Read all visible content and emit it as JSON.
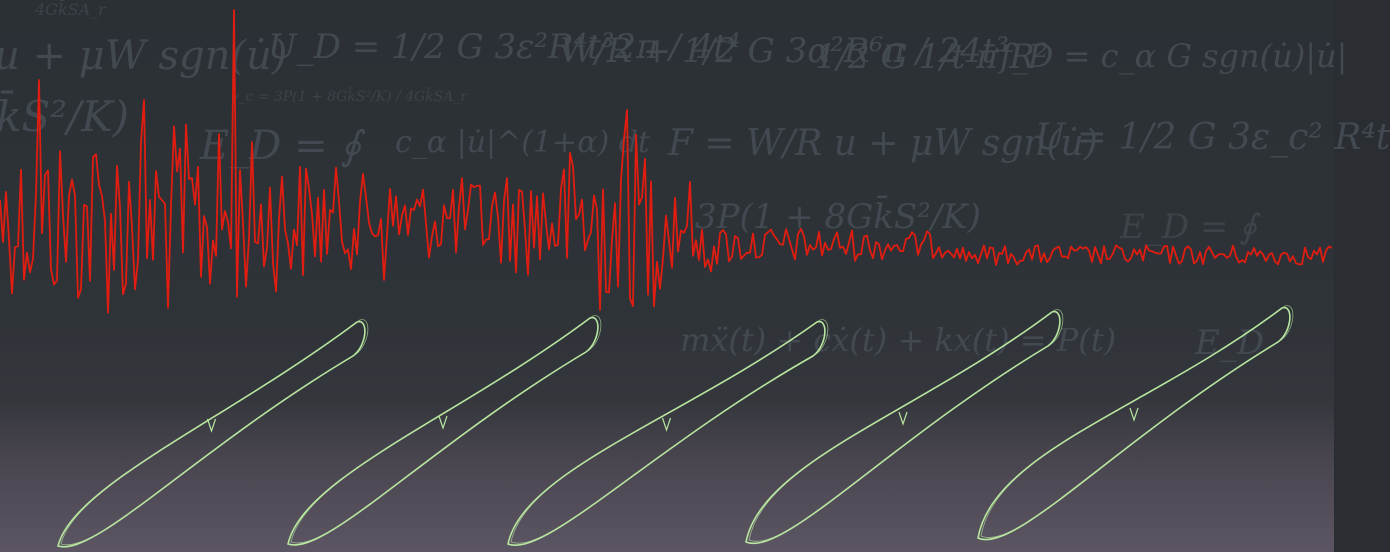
{
  "colors": {
    "background_top": "#2b3035",
    "background_bottom": "#5c5563",
    "signal": "#e01d10",
    "loop": "#b8e6a0",
    "equation_text": "#454b53"
  },
  "equations": [
    "u + μW sgn(u̇)",
    "U_D = 1/2 G 3ε²R⁴t³2π / 4t⁴",
    "W/R + 1/2 G 3α²R⁶π / 24t³",
    "1/2 G 1/t π R²",
    "f_D = c_α G sgn(u̇)|u̇|",
    "k̄S²/K)",
    "E_D = ∮",
    "c_α |u̇|^(1+α) dt",
    "F = W/R u + μW sgn(u̇)",
    "U = 1/2 G 3ε_c² R⁴t",
    "3P(1 + 8Gk̄S²/K)",
    "E_D = ∮",
    "mẍ(t) + cẋ(t) + kx(t) = P(t)",
    "E_D",
    "4Gk̄SA_r",
    "γ_c = 3P(1 + 8Gk̄S²/K) / 4Gk̄SA_r"
  ]
}
